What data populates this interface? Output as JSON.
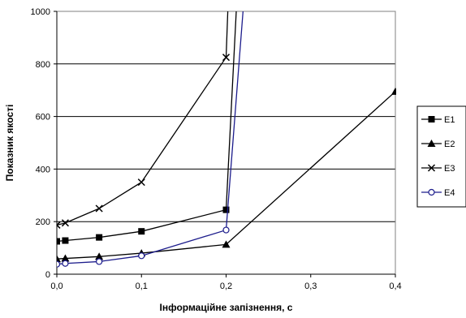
{
  "chart_data": {
    "type": "line",
    "xlabel": "Інформаційне запізнення, с",
    "ylabel": "Показник якості",
    "xlim": [
      0,
      0.4
    ],
    "ylim": [
      0,
      1000
    ],
    "x_ticks": [
      "0,0",
      "0,1",
      "0,2",
      "0,3",
      "0,4"
    ],
    "x_tick_values": [
      0,
      0.1,
      0.2,
      0.3,
      0.4
    ],
    "y_ticks": [
      "0",
      "200",
      "400",
      "600",
      "800",
      "1000"
    ],
    "y_tick_values": [
      0,
      200,
      400,
      600,
      800,
      1000
    ],
    "grid": "horizontal",
    "legend_position": "right",
    "series": [
      {
        "name": "E1",
        "color": "#000000",
        "marker": "square",
        "x": [
          0,
          0.01,
          0.05,
          0.1,
          0.2,
          0.212
        ],
        "y": [
          125,
          128,
          140,
          163,
          245,
          1000
        ]
      },
      {
        "name": "E2",
        "color": "#000000",
        "marker": "triangle",
        "x": [
          0,
          0.01,
          0.05,
          0.1,
          0.2,
          0.4
        ],
        "y": [
          58,
          60,
          67,
          80,
          113,
          695
        ]
      },
      {
        "name": "E3",
        "color": "#000000",
        "marker": "cross",
        "x": [
          0,
          0.01,
          0.05,
          0.1,
          0.2,
          0.202
        ],
        "y": [
          187,
          195,
          250,
          350,
          825,
          1000
        ]
      },
      {
        "name": "E4",
        "color": "#1c1c8c",
        "marker": "circle",
        "x": [
          0,
          0.01,
          0.05,
          0.1,
          0.2,
          0.22
        ],
        "y": [
          38,
          41,
          48,
          70,
          168,
          1000
        ]
      }
    ]
  }
}
